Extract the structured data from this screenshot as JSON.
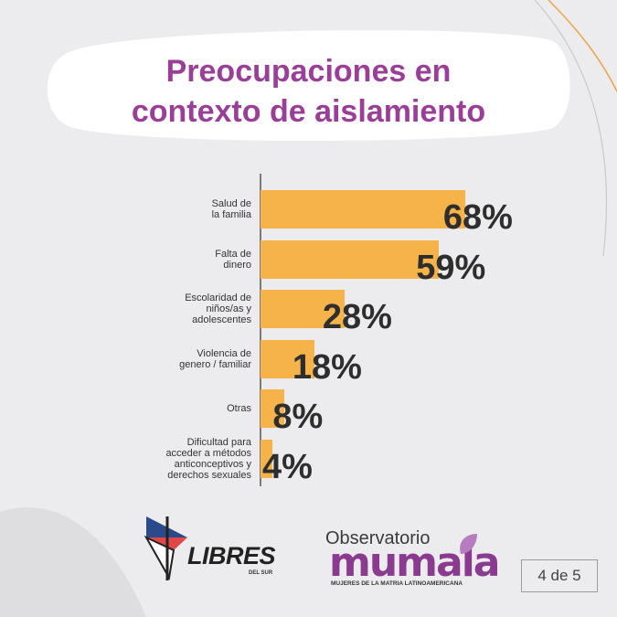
{
  "title": {
    "line1": "Preocupaciones en",
    "line2": "contexto de aislamiento"
  },
  "chart_data": {
    "type": "bar",
    "orientation": "horizontal",
    "title": "Preocupaciones en contexto de aislamiento",
    "categories": [
      [
        "Salud de",
        "la familia"
      ],
      [
        "Falta de",
        "dinero"
      ],
      [
        "Escolaridad de",
        "niños/as y",
        "adolescentes"
      ],
      [
        "Violencia de",
        "genero / familiar"
      ],
      [
        "Otras"
      ],
      [
        "Dificultad para",
        "acceder a métodos",
        "anticonceptivos y",
        "derechos sexuales"
      ]
    ],
    "values": [
      68,
      59,
      28,
      18,
      8,
      4
    ],
    "value_labels": [
      "68%",
      "59%",
      "28%",
      "18%",
      "8%",
      "4%"
    ],
    "xlim": [
      0,
      100
    ],
    "bar_color": "#f5b34a"
  },
  "logos": {
    "libres": "LIBRES",
    "libres_sub": "DEL SUR",
    "observatorio": "Observatorio",
    "mumala": "mumala",
    "mumala_sub": "MUJERES DE LA MATRIA LATINOAMERICANA"
  },
  "pagination": "4 de 5",
  "colors": {
    "title": "#9a3e97",
    "background": "#ececee",
    "accent_orange": "#f0a24a"
  }
}
